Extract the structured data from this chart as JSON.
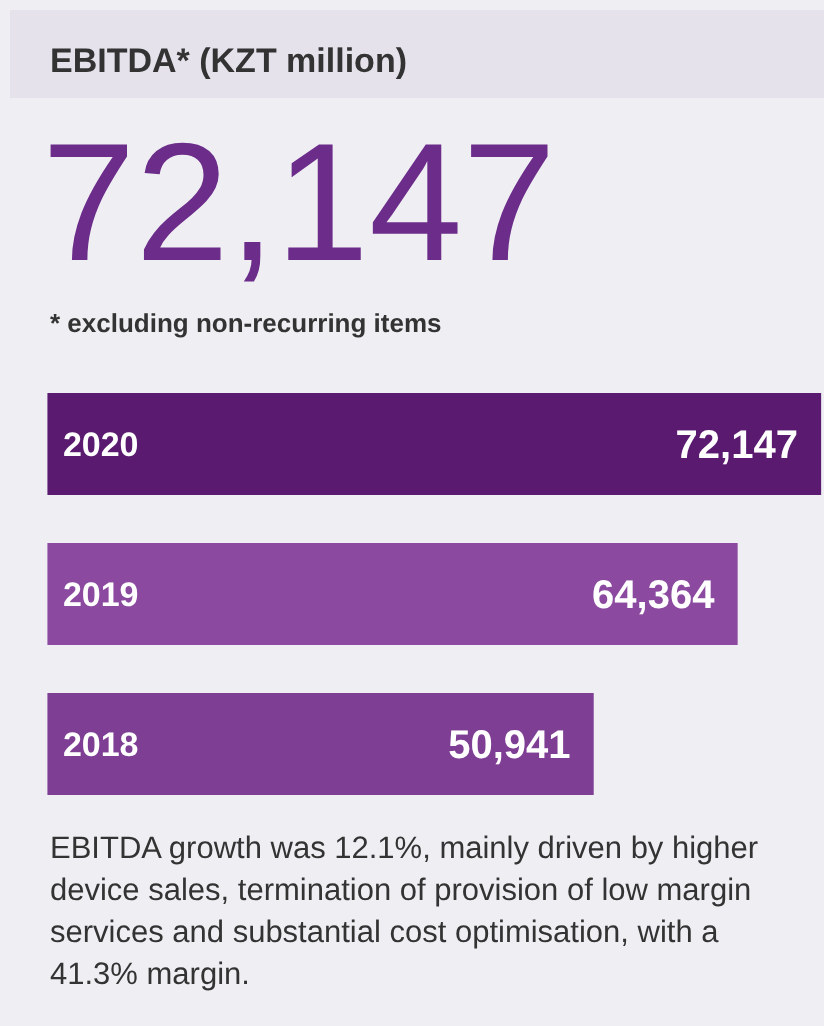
{
  "chart_data": {
    "type": "bar",
    "orientation": "horizontal",
    "title": "EBITDA* (KZT million)",
    "subtitle": "72,147",
    "categories": [
      "2020",
      "2019",
      "2018"
    ],
    "values": [
      72147,
      64364,
      50941
    ],
    "colors": [
      "#5a1a70",
      "#8b4aa0",
      "#7d3e93"
    ],
    "value_labels": [
      "72,147",
      "64,364",
      "50,941"
    ],
    "annotations": [
      "* excluding non-recurring items",
      "EBITDA growth was 12.1%, mainly driven by higher device sales, termination of provision of low margin services and substantial cost optimisation, with a 41.3% margin."
    ]
  }
}
